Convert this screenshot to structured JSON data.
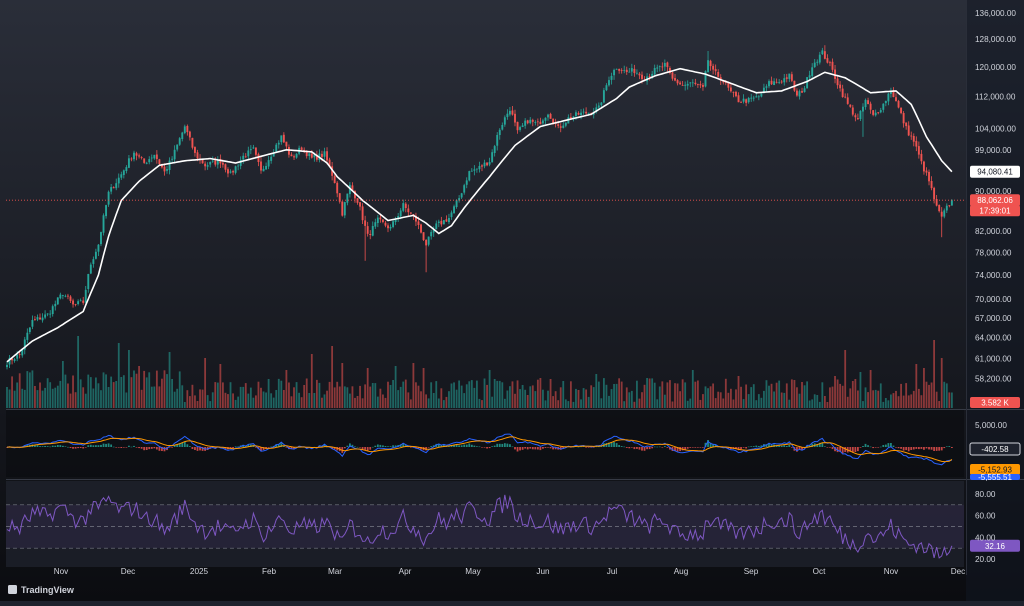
{
  "app": {
    "logo_text": "TradingView"
  },
  "colors": {
    "bg_top": "#2a2e39",
    "bg_bottom": "#0b0c10",
    "up": "#26a69a",
    "down": "#ef5350",
    "ma": "#ffffff",
    "macd_line": "#2962ff",
    "signal_line": "#ff9800",
    "rsi_line": "#7e57c2",
    "rsi_band": "#7e57c2",
    "axis_text": "#d1d4dc"
  },
  "price_axis": {
    "labels": [
      "136,000.00",
      "128,000.00",
      "120,000.00",
      "112,000.00",
      "104,000.00",
      "99,000.00",
      "90,000.00",
      "82,000.00",
      "78,000.00",
      "74,000.00",
      "70,000.00",
      "67,000.00",
      "64,000.00",
      "61,000.00",
      "58,200.00",
      "55,500.00"
    ],
    "ma_tag": "94,080.41",
    "price_tag": "88,062.06",
    "countdown_tag": "17:39:01",
    "volume_tag": "3.582 K"
  },
  "macd_axis": {
    "labels": [
      "5,000.00"
    ],
    "hist_tag": "-402.58",
    "signal_tag": "-5,152.93",
    "macd_tag": "-5,555.51"
  },
  "rsi_axis": {
    "labels": [
      "80.00",
      "60.00",
      "40.00",
      "20.00"
    ],
    "value_tag": "32.16"
  },
  "time_axis": {
    "labels": [
      "Nov",
      "Dec",
      "2025",
      "Feb",
      "Mar",
      "Apr",
      "May",
      "Jun",
      "Jul",
      "Aug",
      "Sep",
      "Oct",
      "Nov",
      "Dec"
    ]
  },
  "chart_data": {
    "type": "candlestick",
    "instrument_label": "",
    "price_keypoints": [
      [
        0,
        60500
      ],
      [
        5,
        61500
      ],
      [
        10,
        66500
      ],
      [
        16,
        67500
      ],
      [
        22,
        71000
      ],
      [
        26,
        69000
      ],
      [
        30,
        69500
      ],
      [
        33,
        76000
      ],
      [
        36,
        79500
      ],
      [
        40,
        89500
      ],
      [
        45,
        93500
      ],
      [
        50,
        98500
      ],
      [
        54,
        96000
      ],
      [
        58,
        98000
      ],
      [
        62,
        94000
      ],
      [
        65,
        97000
      ],
      [
        70,
        104500
      ],
      [
        74,
        98000
      ],
      [
        78,
        95500
      ],
      [
        84,
        96500
      ],
      [
        88,
        93500
      ],
      [
        93,
        97500
      ],
      [
        97,
        99000
      ],
      [
        100,
        94000
      ],
      [
        104,
        98000
      ],
      [
        108,
        102000
      ],
      [
        112,
        97000
      ],
      [
        116,
        99500
      ],
      [
        120,
        97000
      ],
      [
        125,
        98000
      ],
      [
        129,
        92000
      ],
      [
        132,
        85500
      ],
      [
        135,
        91000
      ],
      [
        138,
        88000
      ],
      [
        142,
        81000
      ],
      [
        146,
        84000
      ],
      [
        151,
        82500
      ],
      [
        156,
        87000
      ],
      [
        161,
        84000
      ],
      [
        165,
        79500
      ],
      [
        169,
        83000
      ],
      [
        174,
        84500
      ],
      [
        178,
        88500
      ],
      [
        182,
        94000
      ],
      [
        186,
        95000
      ],
      [
        190,
        96500
      ],
      [
        194,
        104000
      ],
      [
        198,
        109000
      ],
      [
        201,
        103000
      ],
      [
        205,
        106000
      ],
      [
        209,
        105000
      ],
      [
        213,
        108000
      ],
      [
        217,
        104000
      ],
      [
        221,
        106500
      ],
      [
        225,
        107500
      ],
      [
        229,
        108000
      ],
      [
        233,
        109000
      ],
      [
        237,
        117000
      ],
      [
        240,
        120000
      ],
      [
        244,
        118500
      ],
      [
        247,
        119000
      ],
      [
        251,
        117000
      ],
      [
        255,
        119000
      ],
      [
        259,
        120500
      ],
      [
        262,
        116500
      ],
      [
        266,
        115000
      ],
      [
        270,
        115500
      ],
      [
        274,
        114000
      ],
      [
        276,
        122000
      ],
      [
        278,
        118500
      ],
      [
        281,
        117000
      ],
      [
        285,
        113000
      ],
      [
        288,
        111000
      ],
      [
        292,
        111000
      ],
      [
        296,
        112000
      ],
      [
        300,
        115500
      ],
      [
        304,
        116000
      ],
      [
        308,
        117500
      ],
      [
        311,
        112000
      ],
      [
        314,
        114500
      ],
      [
        317,
        120500
      ],
      [
        321,
        124000
      ],
      [
        324,
        120500
      ],
      [
        328,
        114000
      ],
      [
        331,
        110000
      ],
      [
        335,
        106000
      ],
      [
        338,
        111000
      ],
      [
        341,
        107000
      ],
      [
        345,
        110000
      ],
      [
        348,
        114000
      ],
      [
        351,
        109000
      ],
      [
        354,
        104000
      ],
      [
        357,
        101000
      ],
      [
        360,
        96000
      ],
      [
        363,
        92000
      ],
      [
        366,
        86500
      ],
      [
        368,
        84500
      ],
      [
        370,
        86500
      ],
      [
        372,
        88062
      ]
    ],
    "overlay_ma_keypoints": [
      [
        0,
        60500
      ],
      [
        10,
        63500
      ],
      [
        20,
        65500
      ],
      [
        30,
        68000
      ],
      [
        36,
        74000
      ],
      [
        40,
        81000
      ],
      [
        45,
        88000
      ],
      [
        52,
        92000
      ],
      [
        60,
        95500
      ],
      [
        70,
        96500
      ],
      [
        80,
        97000
      ],
      [
        90,
        96000
      ],
      [
        100,
        97500
      ],
      [
        110,
        99000
      ],
      [
        120,
        98500
      ],
      [
        126,
        96000
      ],
      [
        130,
        93000
      ],
      [
        140,
        88000
      ],
      [
        150,
        84000
      ],
      [
        160,
        85000
      ],
      [
        165,
        83500
      ],
      [
        170,
        81500
      ],
      [
        175,
        83000
      ],
      [
        180,
        86500
      ],
      [
        190,
        93000
      ],
      [
        200,
        100000
      ],
      [
        210,
        104500
      ],
      [
        220,
        106000
      ],
      [
        230,
        107500
      ],
      [
        240,
        111500
      ],
      [
        245,
        114500
      ],
      [
        255,
        117500
      ],
      [
        265,
        119500
      ],
      [
        275,
        118000
      ],
      [
        285,
        115500
      ],
      [
        295,
        113000
      ],
      [
        305,
        113500
      ],
      [
        315,
        116000
      ],
      [
        322,
        118500
      ],
      [
        330,
        117000
      ],
      [
        340,
        113000
      ],
      [
        350,
        113500
      ],
      [
        356,
        110000
      ],
      [
        362,
        102000
      ],
      [
        368,
        96500
      ],
      [
        372,
        94080
      ]
    ],
    "current_price": 88062.06,
    "ma_value": 94080.41,
    "last_volume": "3.582 K",
    "price_range": [
      55500,
      136000
    ],
    "price_scale": "log",
    "macd": {
      "macd": -5555.51,
      "signal": -5152.93,
      "histogram": -402.58
    },
    "rsi": {
      "value": 32.16,
      "levels": [
        70,
        50,
        30
      ],
      "range": [
        20,
        80
      ]
    },
    "time_labels": [
      "Nov",
      "Dec",
      "2025",
      "Feb",
      "Mar",
      "Apr",
      "May",
      "Jun",
      "Jul",
      "Aug",
      "Sep",
      "Oct",
      "Nov",
      "Dec"
    ]
  }
}
